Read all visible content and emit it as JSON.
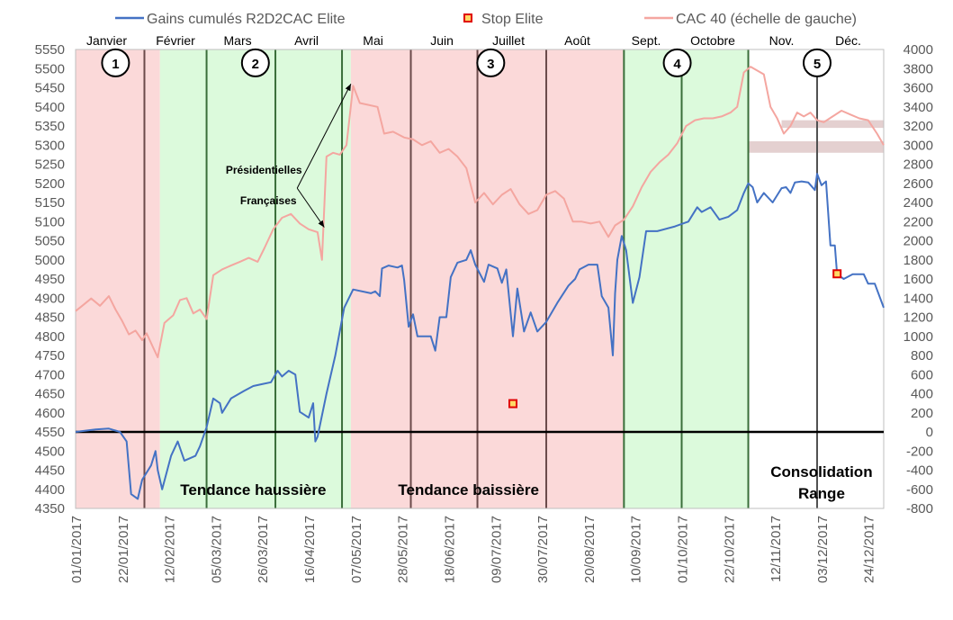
{
  "chart_data": {
    "type": "line",
    "left_axis": {
      "ticks": [
        4350,
        4400,
        4450,
        4500,
        4550,
        4600,
        4650,
        4700,
        4750,
        4800,
        4850,
        4900,
        4950,
        5000,
        5050,
        5100,
        5150,
        5200,
        5250,
        5300,
        5350,
        5400,
        5450,
        5500,
        5550
      ],
      "range": [
        4350,
        5550
      ]
    },
    "right_axis": {
      "ticks": [
        -800,
        -600,
        -400,
        -200,
        0,
        200,
        400,
        600,
        800,
        1000,
        1200,
        1400,
        1600,
        1800,
        2000,
        2200,
        2400,
        2600,
        2800,
        3000,
        3200,
        3400,
        3600,
        3800,
        4000
      ],
      "range": [
        -800,
        4000
      ]
    },
    "x_range": [
      "2017-01-01",
      "2017-12-31"
    ],
    "x_tick_labels": [
      "01/01/2017",
      "22/01/2017",
      "12/02/2017",
      "05/03/2017",
      "26/03/2017",
      "16/04/2017",
      "07/05/2017",
      "28/05/2017",
      "18/06/2017",
      "09/07/2017",
      "30/07/2017",
      "20/08/2017",
      "10/09/2017",
      "01/10/2017",
      "22/10/2017",
      "12/11/2017",
      "03/12/2017",
      "24/12/2017"
    ],
    "months": [
      "Janvier",
      "Février",
      "Mars",
      "Avril",
      "Mai",
      "Juin",
      "Juillet",
      "Août",
      "Sept.",
      "Octobre",
      "Nov.",
      "Déc."
    ],
    "legend": {
      "gains": "Gains cumulés R2D2CAC Elite",
      "stop": "Stop Elite",
      "cac": "CAC 40 (échelle de gauche)"
    },
    "colors": {
      "gains": "#4472c4",
      "cac": "#f4a6a0",
      "stop_fill": "#ffd966",
      "stop_border": "#e00000",
      "up_zone": "#dcfadc",
      "down_zone": "#fbd9d9",
      "range_band": "#e4d0d0",
      "divider": "#505050",
      "baseline": "#000000"
    },
    "zones": [
      {
        "kind": "down",
        "start": "2017-01-01",
        "end": "2017-02-08"
      },
      {
        "kind": "up",
        "start": "2017-02-08",
        "end": "2017-05-05"
      },
      {
        "kind": "down",
        "start": "2017-05-05",
        "end": "2017-09-05"
      },
      {
        "kind": "up",
        "start": "2017-09-05",
        "end": "2017-10-31"
      },
      {
        "kind": "none",
        "start": "2017-10-31",
        "end": "2017-12-31"
      }
    ],
    "dividers": [
      {
        "date": "2017-02-01",
        "color": "#6b4a4a"
      },
      {
        "date": "2017-03-01",
        "color": "#3a6e3a"
      },
      {
        "date": "2017-04-01",
        "color": "#3a6e3a"
      },
      {
        "date": "2017-05-01",
        "color": "#3a6e3a"
      },
      {
        "date": "2017-06-01",
        "color": "#6b4a4a"
      },
      {
        "date": "2017-07-01",
        "color": "#6b4a4a"
      },
      {
        "date": "2017-08-01",
        "color": "#6b4a4a"
      },
      {
        "date": "2017-09-05",
        "color": "#3a6e3a"
      },
      {
        "date": "2017-10-01",
        "color": "#3a6e3a"
      },
      {
        "date": "2017-10-31",
        "color": "#3a6e3a"
      },
      {
        "date": "2017-12-01",
        "color": "#505050"
      }
    ],
    "phases": [
      {
        "label": "1",
        "date": "2017-01-19",
        "y": 5515
      },
      {
        "label": "2",
        "date": "2017-03-23",
        "y": 5515
      },
      {
        "label": "3",
        "date": "2017-07-07",
        "y": 5515
      },
      {
        "label": "4",
        "date": "2017-09-29",
        "y": 5515
      },
      {
        "label": "5",
        "date": "2017-12-01",
        "y": 5515
      }
    ],
    "range_bands": [
      {
        "start": "2017-11-15",
        "end": "2017-12-31",
        "y1": 5345,
        "y2": 5365
      },
      {
        "start": "2017-10-31",
        "end": "2017-12-31",
        "y1": 5280,
        "y2": 5310
      }
    ],
    "annotation": {
      "line1": "Présidentielles",
      "line2": "Françaises",
      "from_date": "2017-04-10",
      "from_y": 5225,
      "targets": [
        {
          "date": "2017-04-23",
          "y": 5085
        },
        {
          "date": "2017-05-05",
          "y": 5460
        }
      ]
    },
    "trend_labels": [
      {
        "text": "Tendance haussière",
        "date": "2017-03-22",
        "y": 4395
      },
      {
        "text": "Tendance baissière",
        "date": "2017-06-27",
        "y": 4395
      }
    ],
    "consolidation": {
      "line1": "Consolidation",
      "line2": "Range",
      "date": "2017-12-03"
    },
    "stops": [
      {
        "date": "2017-07-17",
        "value": 296
      },
      {
        "date": "2017-12-10",
        "value": 1654
      }
    ],
    "baseline_value": 0,
    "cac_series": [
      [
        "2017-01-01",
        4866
      ],
      [
        "2017-01-04",
        4880
      ],
      [
        "2017-01-08",
        4899
      ],
      [
        "2017-01-12",
        4880
      ],
      [
        "2017-01-16",
        4905
      ],
      [
        "2017-01-19",
        4870
      ],
      [
        "2017-01-22",
        4840
      ],
      [
        "2017-01-25",
        4805
      ],
      [
        "2017-01-28",
        4815
      ],
      [
        "2017-01-31",
        4790
      ],
      [
        "2017-02-02",
        4808
      ],
      [
        "2017-02-05",
        4770
      ],
      [
        "2017-02-07",
        4745
      ],
      [
        "2017-02-10",
        4835
      ],
      [
        "2017-02-14",
        4855
      ],
      [
        "2017-02-17",
        4895
      ],
      [
        "2017-02-20",
        4900
      ],
      [
        "2017-02-23",
        4860
      ],
      [
        "2017-02-26",
        4870
      ],
      [
        "2017-03-01",
        4845
      ],
      [
        "2017-03-04",
        4960
      ],
      [
        "2017-03-08",
        4975
      ],
      [
        "2017-03-12",
        4985
      ],
      [
        "2017-03-16",
        4995
      ],
      [
        "2017-03-20",
        5005
      ],
      [
        "2017-03-24",
        4995
      ],
      [
        "2017-03-27",
        5030
      ],
      [
        "2017-03-31",
        5080
      ],
      [
        "2017-04-04",
        5110
      ],
      [
        "2017-04-08",
        5120
      ],
      [
        "2017-04-12",
        5095
      ],
      [
        "2017-04-16",
        5080
      ],
      [
        "2017-04-20",
        5072
      ],
      [
        "2017-04-22",
        5000
      ],
      [
        "2017-04-24",
        5270
      ],
      [
        "2017-04-27",
        5280
      ],
      [
        "2017-04-30",
        5275
      ],
      [
        "2017-05-03",
        5300
      ],
      [
        "2017-05-06",
        5455
      ],
      [
        "2017-05-09",
        5410
      ],
      [
        "2017-05-13",
        5405
      ],
      [
        "2017-05-17",
        5400
      ],
      [
        "2017-05-20",
        5330
      ],
      [
        "2017-05-24",
        5335
      ],
      [
        "2017-05-29",
        5320
      ],
      [
        "2017-06-02",
        5315
      ],
      [
        "2017-06-06",
        5300
      ],
      [
        "2017-06-10",
        5310
      ],
      [
        "2017-06-14",
        5280
      ],
      [
        "2017-06-18",
        5290
      ],
      [
        "2017-06-22",
        5270
      ],
      [
        "2017-06-26",
        5240
      ],
      [
        "2017-06-30",
        5150
      ],
      [
        "2017-07-04",
        5175
      ],
      [
        "2017-07-08",
        5145
      ],
      [
        "2017-07-12",
        5170
      ],
      [
        "2017-07-16",
        5185
      ],
      [
        "2017-07-20",
        5145
      ],
      [
        "2017-07-24",
        5120
      ],
      [
        "2017-07-28",
        5130
      ],
      [
        "2017-08-01",
        5170
      ],
      [
        "2017-08-05",
        5180
      ],
      [
        "2017-08-09",
        5160
      ],
      [
        "2017-08-13",
        5100
      ],
      [
        "2017-08-17",
        5100
      ],
      [
        "2017-08-21",
        5095
      ],
      [
        "2017-08-25",
        5100
      ],
      [
        "2017-08-29",
        5060
      ],
      [
        "2017-09-01",
        5090
      ],
      [
        "2017-09-05",
        5105
      ],
      [
        "2017-09-09",
        5140
      ],
      [
        "2017-09-13",
        5190
      ],
      [
        "2017-09-17",
        5230
      ],
      [
        "2017-09-21",
        5255
      ],
      [
        "2017-09-25",
        5275
      ],
      [
        "2017-09-29",
        5305
      ],
      [
        "2017-10-03",
        5350
      ],
      [
        "2017-10-07",
        5365
      ],
      [
        "2017-10-11",
        5370
      ],
      [
        "2017-10-15",
        5370
      ],
      [
        "2017-10-19",
        5375
      ],
      [
        "2017-10-23",
        5385
      ],
      [
        "2017-10-26",
        5400
      ],
      [
        "2017-10-29",
        5490
      ],
      [
        "2017-11-01",
        5505
      ],
      [
        "2017-11-04",
        5495
      ],
      [
        "2017-11-07",
        5485
      ],
      [
        "2017-11-10",
        5400
      ],
      [
        "2017-11-13",
        5370
      ],
      [
        "2017-11-16",
        5330
      ],
      [
        "2017-11-19",
        5350
      ],
      [
        "2017-11-22",
        5385
      ],
      [
        "2017-11-25",
        5375
      ],
      [
        "2017-11-28",
        5385
      ],
      [
        "2017-12-01",
        5365
      ],
      [
        "2017-12-04",
        5360
      ],
      [
        "2017-12-08",
        5375
      ],
      [
        "2017-12-12",
        5390
      ],
      [
        "2017-12-16",
        5380
      ],
      [
        "2017-12-20",
        5370
      ],
      [
        "2017-12-24",
        5365
      ],
      [
        "2017-12-28",
        5330
      ],
      [
        "2017-12-31",
        5300
      ]
    ],
    "gains_series": [
      [
        "2017-01-01",
        0
      ],
      [
        "2017-01-10",
        25
      ],
      [
        "2017-01-16",
        35
      ],
      [
        "2017-01-21",
        0
      ],
      [
        "2017-01-24",
        -100
      ],
      [
        "2017-01-26",
        -650
      ],
      [
        "2017-01-29",
        -700
      ],
      [
        "2017-01-31",
        -500
      ],
      [
        "2017-02-04",
        -350
      ],
      [
        "2017-02-06",
        -200
      ],
      [
        "2017-02-07",
        -400
      ],
      [
        "2017-02-09",
        -600
      ],
      [
        "2017-02-13",
        -250
      ],
      [
        "2017-02-16",
        -100
      ],
      [
        "2017-02-19",
        -300
      ],
      [
        "2017-02-24",
        -250
      ],
      [
        "2017-02-26",
        -150
      ],
      [
        "2017-03-01",
        50
      ],
      [
        "2017-03-04",
        350
      ],
      [
        "2017-03-07",
        300
      ],
      [
        "2017-03-08",
        200
      ],
      [
        "2017-03-12",
        350
      ],
      [
        "2017-03-18",
        430
      ],
      [
        "2017-03-22",
        480
      ],
      [
        "2017-03-26",
        500
      ],
      [
        "2017-03-30",
        520
      ],
      [
        "2017-04-02",
        640
      ],
      [
        "2017-04-04",
        580
      ],
      [
        "2017-04-07",
        640
      ],
      [
        "2017-04-10",
        600
      ],
      [
        "2017-04-12",
        210
      ],
      [
        "2017-04-16",
        150
      ],
      [
        "2017-04-18",
        300
      ],
      [
        "2017-04-19",
        -100
      ],
      [
        "2017-04-20",
        -50
      ],
      [
        "2017-04-24",
        400
      ],
      [
        "2017-04-28",
        800
      ],
      [
        "2017-05-02",
        1300
      ],
      [
        "2017-05-06",
        1490
      ],
      [
        "2017-05-14",
        1450
      ],
      [
        "2017-05-16",
        1470
      ],
      [
        "2017-05-18",
        1420
      ],
      [
        "2017-05-19",
        1710
      ],
      [
        "2017-05-22",
        1740
      ],
      [
        "2017-05-26",
        1720
      ],
      [
        "2017-05-28",
        1740
      ],
      [
        "2017-05-29",
        1590
      ],
      [
        "2017-05-31",
        1100
      ],
      [
        "2017-06-02",
        1230
      ],
      [
        "2017-06-04",
        1000
      ],
      [
        "2017-06-10",
        1000
      ],
      [
        "2017-06-12",
        850
      ],
      [
        "2017-06-14",
        1200
      ],
      [
        "2017-06-17",
        1200
      ],
      [
        "2017-06-19",
        1620
      ],
      [
        "2017-06-22",
        1770
      ],
      [
        "2017-06-26",
        1800
      ],
      [
        "2017-06-28",
        1900
      ],
      [
        "2017-06-30",
        1750
      ],
      [
        "2017-07-04",
        1570
      ],
      [
        "2017-07-06",
        1750
      ],
      [
        "2017-07-10",
        1710
      ],
      [
        "2017-07-12",
        1560
      ],
      [
        "2017-07-14",
        1700
      ],
      [
        "2017-07-17",
        1000
      ],
      [
        "2017-07-19",
        1500
      ],
      [
        "2017-07-21",
        1200
      ],
      [
        "2017-07-22",
        1050
      ],
      [
        "2017-07-25",
        1250
      ],
      [
        "2017-07-28",
        1050
      ],
      [
        "2017-08-01",
        1150
      ],
      [
        "2017-08-06",
        1350
      ],
      [
        "2017-08-11",
        1530
      ],
      [
        "2017-08-14",
        1600
      ],
      [
        "2017-08-16",
        1700
      ],
      [
        "2017-08-20",
        1750
      ],
      [
        "2017-08-24",
        1750
      ],
      [
        "2017-08-26",
        1420
      ],
      [
        "2017-08-29",
        1300
      ],
      [
        "2017-08-31",
        800
      ],
      [
        "2017-09-01",
        1450
      ],
      [
        "2017-09-02",
        1800
      ],
      [
        "2017-09-04",
        2050
      ],
      [
        "2017-09-06",
        1900
      ],
      [
        "2017-09-09",
        1350
      ],
      [
        "2017-09-12",
        1620
      ],
      [
        "2017-09-15",
        2100
      ],
      [
        "2017-09-20",
        2100
      ],
      [
        "2017-09-28",
        2150
      ],
      [
        "2017-10-04",
        2200
      ],
      [
        "2017-10-08",
        2350
      ],
      [
        "2017-10-10",
        2300
      ],
      [
        "2017-10-14",
        2350
      ],
      [
        "2017-10-18",
        2220
      ],
      [
        "2017-10-22",
        2250
      ],
      [
        "2017-10-26",
        2320
      ],
      [
        "2017-10-29",
        2500
      ],
      [
        "2017-10-31",
        2600
      ],
      [
        "2017-11-02",
        2560
      ],
      [
        "2017-11-04",
        2400
      ],
      [
        "2017-11-07",
        2500
      ],
      [
        "2017-11-11",
        2400
      ],
      [
        "2017-11-15",
        2550
      ],
      [
        "2017-11-17",
        2560
      ],
      [
        "2017-11-19",
        2500
      ],
      [
        "2017-11-21",
        2610
      ],
      [
        "2017-11-24",
        2620
      ],
      [
        "2017-11-27",
        2610
      ],
      [
        "2017-11-30",
        2530
      ],
      [
        "2017-12-01",
        2700
      ],
      [
        "2017-12-03",
        2580
      ],
      [
        "2017-12-05",
        2620
      ],
      [
        "2017-12-07",
        1950
      ],
      [
        "2017-12-09",
        1950
      ],
      [
        "2017-12-10",
        1650
      ],
      [
        "2017-12-13",
        1600
      ],
      [
        "2017-12-17",
        1650
      ],
      [
        "2017-12-22",
        1650
      ],
      [
        "2017-12-24",
        1550
      ],
      [
        "2017-12-27",
        1550
      ],
      [
        "2017-12-31",
        1300
      ]
    ]
  }
}
